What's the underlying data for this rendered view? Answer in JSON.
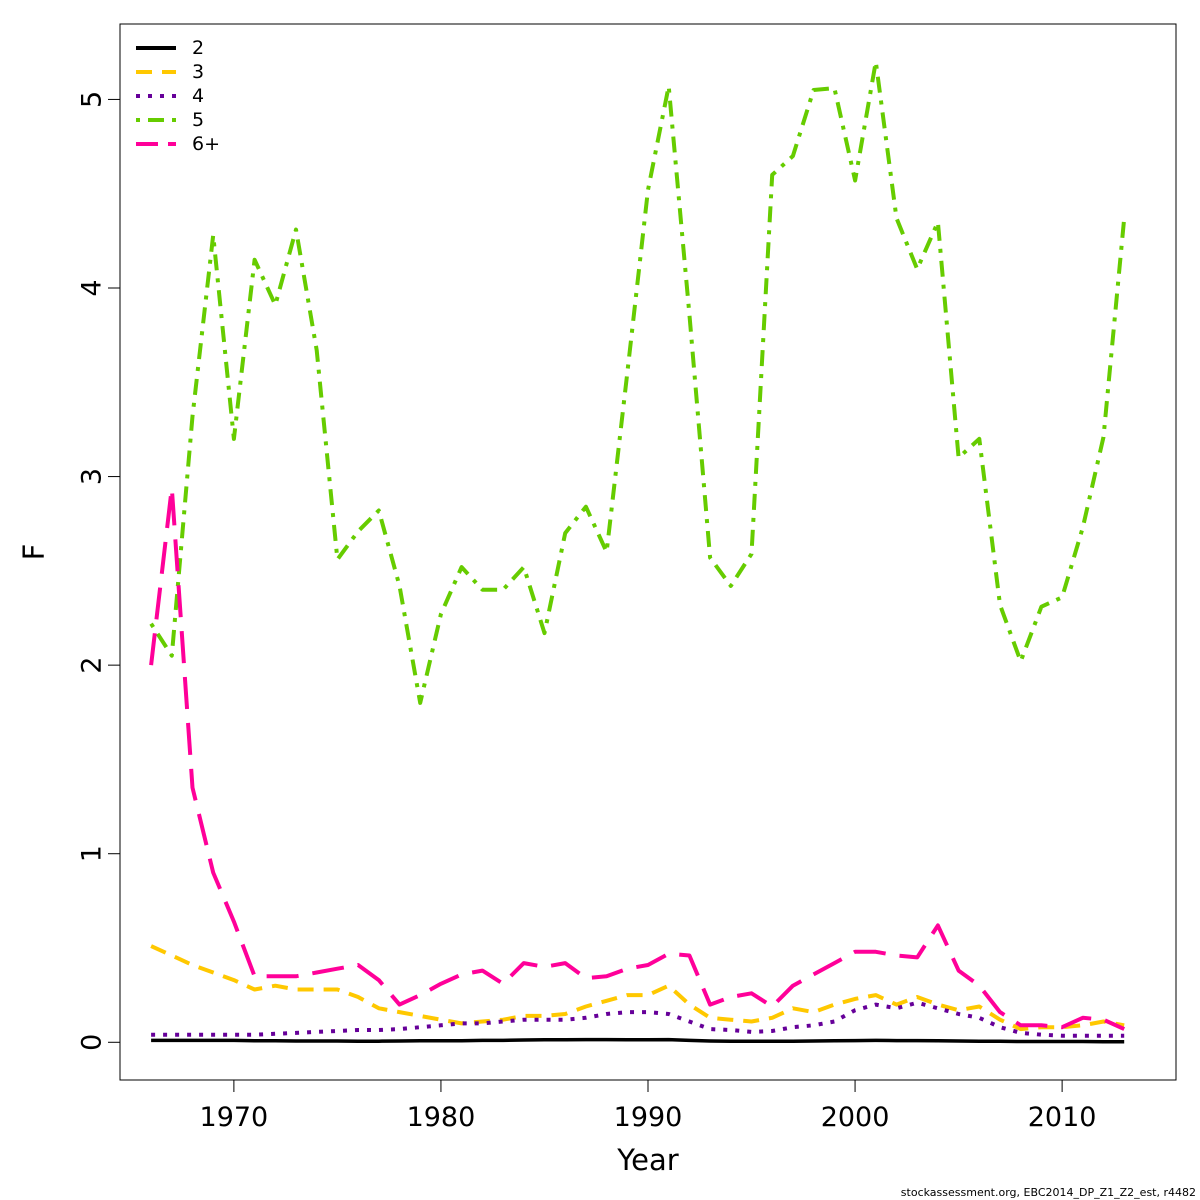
{
  "chart_data": {
    "type": "line",
    "xlabel": "Year",
    "ylabel": "F",
    "xlim": [
      1964.5,
      2015.5
    ],
    "ylim": [
      -0.2,
      5.4
    ],
    "xticks": [
      1970,
      1980,
      1990,
      2000,
      2010
    ],
    "yticks": [
      0,
      1,
      2,
      3,
      4,
      5
    ],
    "grid": false,
    "legend_position": "top-left",
    "x": [
      1966,
      1967,
      1968,
      1969,
      1970,
      1971,
      1972,
      1973,
      1974,
      1975,
      1976,
      1977,
      1978,
      1979,
      1980,
      1981,
      1982,
      1983,
      1984,
      1985,
      1986,
      1987,
      1988,
      1989,
      1990,
      1991,
      1992,
      1993,
      1994,
      1995,
      1996,
      1997,
      1998,
      1999,
      2000,
      2001,
      2002,
      2003,
      2004,
      2005,
      2006,
      2007,
      2008,
      2009,
      2010,
      2011,
      2012,
      2013
    ],
    "series": [
      {
        "name": "2",
        "color": "#000000",
        "dash": "solid",
        "values": [
          0.01,
          0.01,
          0.01,
          0.01,
          0.01,
          0.008,
          0.008,
          0.007,
          0.007,
          0.007,
          0.006,
          0.006,
          0.007,
          0.008,
          0.008,
          0.008,
          0.01,
          0.01,
          0.012,
          0.013,
          0.013,
          0.014,
          0.014,
          0.013,
          0.013,
          0.014,
          0.01,
          0.007,
          0.006,
          0.006,
          0.006,
          0.006,
          0.007,
          0.008,
          0.009,
          0.01,
          0.009,
          0.009,
          0.008,
          0.007,
          0.006,
          0.005,
          0.004,
          0.004,
          0.004,
          0.004,
          0.003,
          0.003
        ]
      },
      {
        "name": "3",
        "color": "#FFC800",
        "dash": "dashed",
        "values": [
          0.51,
          0.46,
          0.41,
          0.37,
          0.33,
          0.28,
          0.3,
          0.28,
          0.28,
          0.28,
          0.24,
          0.18,
          0.16,
          0.14,
          0.12,
          0.1,
          0.11,
          0.12,
          0.14,
          0.14,
          0.15,
          0.19,
          0.22,
          0.25,
          0.25,
          0.3,
          0.2,
          0.13,
          0.12,
          0.11,
          0.13,
          0.18,
          0.16,
          0.2,
          0.23,
          0.25,
          0.2,
          0.24,
          0.2,
          0.17,
          0.19,
          0.12,
          0.07,
          0.08,
          0.08,
          0.09,
          0.11,
          0.09
        ]
      },
      {
        "name": "4",
        "color": "#660099",
        "dash": "dotted",
        "values": [
          0.04,
          0.04,
          0.04,
          0.04,
          0.04,
          0.04,
          0.045,
          0.05,
          0.055,
          0.06,
          0.065,
          0.065,
          0.07,
          0.08,
          0.09,
          0.1,
          0.1,
          0.11,
          0.12,
          0.12,
          0.12,
          0.13,
          0.15,
          0.16,
          0.16,
          0.15,
          0.11,
          0.07,
          0.065,
          0.055,
          0.06,
          0.08,
          0.09,
          0.11,
          0.17,
          0.2,
          0.18,
          0.21,
          0.18,
          0.15,
          0.13,
          0.08,
          0.05,
          0.04,
          0.035,
          0.035,
          0.035,
          0.035
        ]
      },
      {
        "name": "5",
        "color": "#66CC00",
        "dash": "dotdash",
        "values": [
          2.22,
          2.05,
          3.32,
          4.28,
          3.2,
          4.15,
          3.91,
          4.31,
          3.67,
          2.56,
          2.71,
          2.82,
          2.42,
          1.8,
          2.27,
          2.52,
          2.4,
          2.4,
          2.52,
          2.17,
          2.7,
          2.84,
          2.6,
          3.55,
          4.52,
          5.07,
          3.86,
          2.57,
          2.42,
          2.59,
          4.6,
          4.7,
          5.05,
          5.06,
          4.57,
          5.2,
          4.37,
          4.1,
          4.35,
          3.1,
          3.2,
          2.32,
          2.02,
          2.31,
          2.36,
          2.73,
          3.21,
          4.37
        ]
      },
      {
        "name": "6+",
        "color": "#FF0099",
        "dash": "longdash",
        "values": [
          2.0,
          2.94,
          1.35,
          0.9,
          0.64,
          0.35,
          0.35,
          0.35,
          0.37,
          0.39,
          0.41,
          0.33,
          0.2,
          0.25,
          0.31,
          0.36,
          0.38,
          0.31,
          0.42,
          0.4,
          0.42,
          0.34,
          0.35,
          0.39,
          0.41,
          0.47,
          0.46,
          0.2,
          0.24,
          0.26,
          0.19,
          0.3,
          0.36,
          0.42,
          0.48,
          0.48,
          0.46,
          0.45,
          0.62,
          0.38,
          0.3,
          0.16,
          0.09,
          0.09,
          0.08,
          0.13,
          0.12,
          0.07
        ]
      }
    ],
    "footer": "stockassessment.org, EBC2014_DP_Z1_Z2_est, r4482"
  }
}
